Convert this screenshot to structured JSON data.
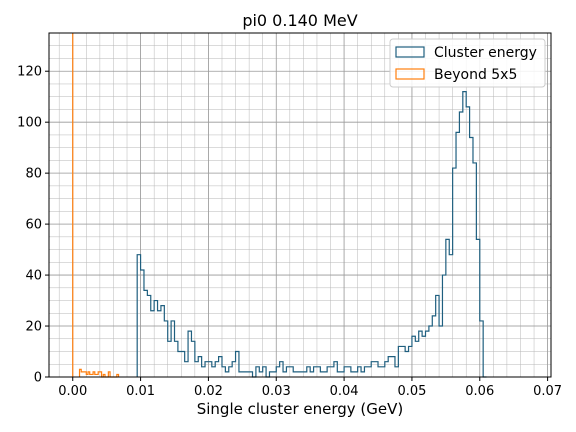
{
  "chart_data": {
    "type": "histogram",
    "title": "pi0 0.140 MeV",
    "xlabel": "Single cluster energy (GeV)",
    "ylabel": "",
    "xlim": [
      -0.0035,
      0.0705
    ],
    "ylim": [
      0,
      135
    ],
    "xticks": [
      0.0,
      0.01,
      0.02,
      0.03,
      0.04,
      0.05,
      0.06,
      0.07
    ],
    "xtick_labels": [
      "0.00",
      "0.01",
      "0.02",
      "0.03",
      "0.04",
      "0.05",
      "0.06",
      "0.07"
    ],
    "yticks": [
      0,
      20,
      40,
      60,
      80,
      100,
      120
    ],
    "ytick_labels": [
      "0",
      "20",
      "40",
      "60",
      "80",
      "100",
      "120"
    ],
    "grid": true,
    "minor_grid": true,
    "legend_position": "top-right",
    "series": [
      {
        "name": "Cluster energy",
        "color": "#1f5f7f",
        "bin_start": 0.0095,
        "bin_width": 0.0005,
        "counts": [
          48,
          42,
          34,
          32,
          26,
          30,
          26,
          28,
          22,
          14,
          22,
          14,
          10,
          10,
          6,
          18,
          14,
          6,
          8,
          4,
          6,
          6,
          4,
          6,
          8,
          4,
          2,
          4,
          6,
          10,
          2,
          2,
          2,
          2,
          0,
          4,
          2,
          4,
          0,
          2,
          2,
          4,
          6,
          2,
          4,
          4,
          2,
          2,
          2,
          2,
          4,
          2,
          4,
          4,
          2,
          2,
          4,
          4,
          6,
          2,
          2,
          4,
          4,
          2,
          2,
          4,
          2,
          4,
          4,
          6,
          6,
          4,
          4,
          6,
          8,
          8,
          4,
          12,
          12,
          10,
          12,
          16,
          14,
          18,
          16,
          18,
          20,
          24,
          32,
          20,
          40,
          54,
          48,
          82,
          96,
          104,
          112,
          106,
          94,
          84,
          54,
          22,
          0
        ]
      },
      {
        "name": "Beyond 5x5",
        "color": "#ff7f0e",
        "spike_x": 0.0,
        "spike_height": 135,
        "bin_start": 0.001,
        "bin_width": 0.00025,
        "counts": [
          3,
          2,
          2,
          2,
          1,
          2,
          1,
          1,
          2,
          1,
          1,
          2,
          2,
          0,
          1,
          0,
          0,
          2,
          0,
          0,
          0,
          0,
          1
        ]
      }
    ]
  }
}
